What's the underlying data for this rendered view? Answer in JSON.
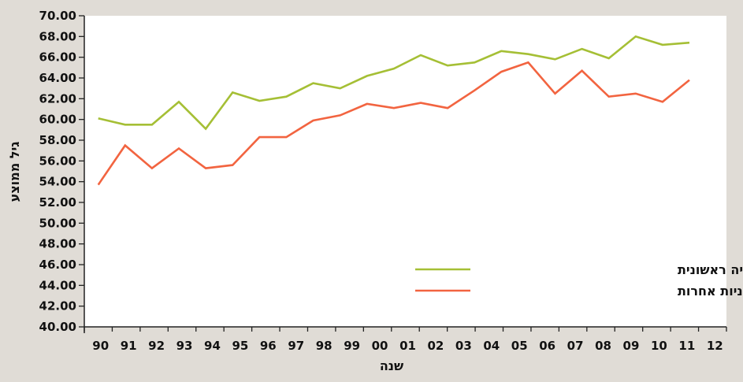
{
  "chart_data": {
    "type": "line",
    "title": "",
    "xlabel": "שנה",
    "ylabel": "גיל ממוצע",
    "ylim": [
      40,
      70
    ],
    "ytick_step": 2,
    "categories": [
      "90",
      "91",
      "92",
      "93",
      "94",
      "95",
      "96",
      "97",
      "98",
      "99",
      "00",
      "01",
      "02",
      "03",
      "04",
      "05",
      "06",
      "07",
      "08",
      "09",
      "10",
      "11",
      "12"
    ],
    "legend_position": "bottom-right",
    "series": [
      {
        "name": "סוכרת כמחלת כליה ראשונית",
        "color": "#a5bf35",
        "values": [
          60.1,
          59.5,
          59.5,
          61.7,
          59.1,
          62.6,
          61.8,
          62.2,
          63.5,
          63.0,
          64.2,
          64.9,
          66.2,
          65.2,
          65.5,
          66.6,
          66.3,
          65.8,
          66.8,
          65.9,
          68.0,
          67.2,
          67.4
        ]
      },
      {
        "name": "מחלות כליה ראשוניות אחרות",
        "color": "#f26440",
        "values": [
          53.7,
          57.5,
          55.3,
          57.2,
          55.3,
          55.6,
          58.3,
          58.3,
          59.9,
          60.4,
          61.5,
          61.1,
          61.6,
          61.1,
          62.8,
          64.6,
          65.5,
          62.5,
          64.7,
          62.2,
          62.5,
          61.7,
          63.8
        ]
      }
    ]
  }
}
